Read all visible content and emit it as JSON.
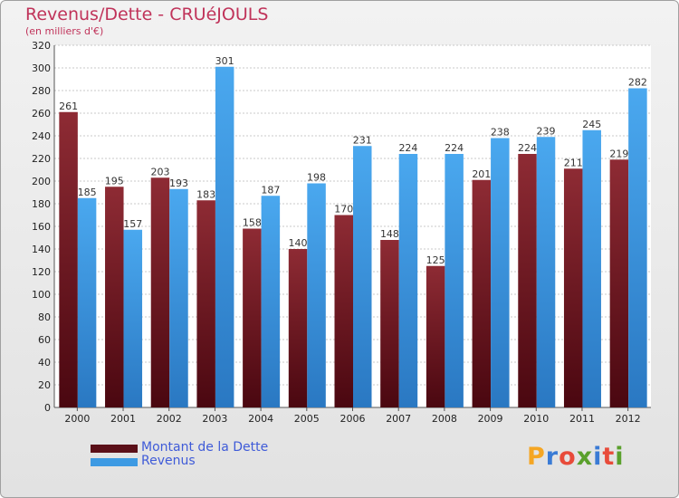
{
  "title": "Revenus/Dette - CRUéJOULS",
  "subtitle": "(en milliers d'€)",
  "logo": {
    "letters": [
      "P",
      "r",
      "o",
      "x",
      "i",
      "t",
      "i"
    ],
    "colors": [
      "#f5a623",
      "#3a7bd5",
      "#e84b3a",
      "#5aa02c",
      "#3a7bd5",
      "#e84b3a",
      "#5aa02c"
    ]
  },
  "colors": {
    "debt": "#7a1f28",
    "revenue": "#3d9ae3"
  },
  "chart_data": {
    "type": "bar",
    "title": "Revenus/Dette - CRUéJOULS",
    "ylabel": "(en milliers d'€)",
    "categories": [
      "2000",
      "2001",
      "2002",
      "2003",
      "2004",
      "2005",
      "2006",
      "2007",
      "2008",
      "2009",
      "2010",
      "2011",
      "2012"
    ],
    "series": [
      {
        "name": "Montant de la Dette",
        "values": [
          261,
          195,
          203,
          183,
          158,
          140,
          170,
          148,
          125,
          201,
          224,
          211,
          219
        ]
      },
      {
        "name": "Revenus",
        "values": [
          185,
          157,
          193,
          301,
          187,
          198,
          231,
          224,
          224,
          238,
          239,
          245,
          282
        ]
      }
    ],
    "ylim": [
      0,
      320
    ],
    "yticks": [
      0,
      20,
      40,
      60,
      80,
      100,
      120,
      140,
      160,
      180,
      200,
      220,
      240,
      260,
      280,
      300,
      320
    ],
    "grid": true,
    "legend": "bottom-left"
  }
}
